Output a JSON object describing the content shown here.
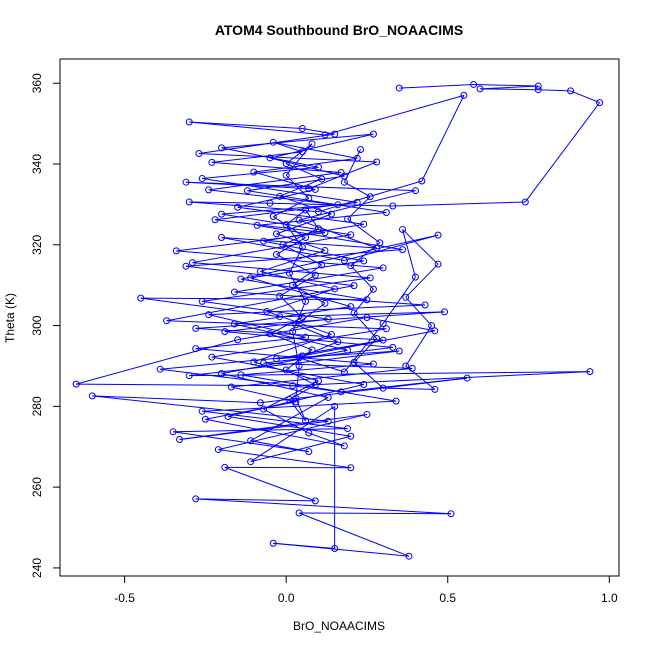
{
  "chart_data": {
    "type": "line",
    "marker": "open-circle",
    "title": "ATOM4 Southbound BrO_NOAACIMS",
    "xlabel": "BrO_NOAACIMS",
    "ylabel": "Theta (K)",
    "xlim": [
      -0.7,
      1.03
    ],
    "ylim": [
      238,
      366
    ],
    "x_ticks": [
      "-0.5",
      "0.0",
      "0.5",
      "1.0"
    ],
    "y_ticks": [
      "240",
      "260",
      "280",
      "300",
      "320",
      "340",
      "360"
    ],
    "grid": false,
    "legend": "none",
    "colors": {
      "series": "#0000ff",
      "frame": "#000000",
      "background": "#ffffff"
    },
    "series": [
      {
        "values": [
          {
            "x": 0.35,
            "y": 358.8
          },
          {
            "x": 0.58,
            "y": 359.7
          },
          {
            "x": 0.78,
            "y": 359.3
          },
          {
            "x": 0.6,
            "y": 358.6
          },
          {
            "x": 0.78,
            "y": 358.4
          },
          {
            "x": 0.88,
            "y": 358.1
          },
          {
            "x": 0.97,
            "y": 355.2
          },
          {
            "x": 0.74,
            "y": 330.6
          },
          {
            "x": 0.33,
            "y": 329.6
          },
          {
            "x": -0.05,
            "y": 330.3
          },
          {
            "x": -0.3,
            "y": 330.6
          },
          {
            "x": 0.1,
            "y": 328.2
          },
          {
            "x": 0.42,
            "y": 335.8
          },
          {
            "x": 0.55,
            "y": 357.0
          },
          {
            "x": 0.12,
            "y": 347.2
          },
          {
            "x": -0.3,
            "y": 350.4
          },
          {
            "x": 0.05,
            "y": 348.8
          },
          {
            "x": 0.15,
            "y": 347.4
          },
          {
            "x": -0.27,
            "y": 342.6
          },
          {
            "x": 0.28,
            "y": 340.5
          },
          {
            "x": 0.07,
            "y": 333.9
          },
          {
            "x": -0.31,
            "y": 335.5
          },
          {
            "x": 0.4,
            "y": 333.4
          },
          {
            "x": 0.04,
            "y": 326.1
          },
          {
            "x": 0.28,
            "y": 319.2
          },
          {
            "x": -0.2,
            "y": 321.8
          },
          {
            "x": 0.18,
            "y": 316.1
          },
          {
            "x": 0.47,
            "y": 322.4
          },
          {
            "x": -0.14,
            "y": 311.5
          },
          {
            "x": 0.25,
            "y": 306.4
          },
          {
            "x": -0.45,
            "y": 306.8
          },
          {
            "x": -0.02,
            "y": 302.2
          },
          {
            "x": 0.49,
            "y": 303.4
          },
          {
            "x": -0.28,
            "y": 299.3
          },
          {
            "x": 0.3,
            "y": 296.4
          },
          {
            "x": -0.03,
            "y": 291.8
          },
          {
            "x": 0.35,
            "y": 293.7
          },
          {
            "x": -0.3,
            "y": 287.6
          },
          {
            "x": 0.94,
            "y": 288.6
          },
          {
            "x": 0.02,
            "y": 285.1
          },
          {
            "x": -0.65,
            "y": 285.5
          },
          {
            "x": -0.15,
            "y": 296.5
          },
          {
            "x": 0.25,
            "y": 302.0
          },
          {
            "x": 0.46,
            "y": 298.7
          },
          {
            "x": 0.05,
            "y": 292.5
          },
          {
            "x": -0.39,
            "y": 289.2
          },
          {
            "x": 0.17,
            "y": 283.6
          },
          {
            "x": 0.56,
            "y": 287.0
          },
          {
            "x": -0.08,
            "y": 280.9
          },
          {
            "x": -0.6,
            "y": 282.6
          },
          {
            "x": 0.13,
            "y": 276.3
          },
          {
            "x": -0.33,
            "y": 271.8
          },
          {
            "x": 0.25,
            "y": 278.0
          },
          {
            "x": -0.21,
            "y": 269.3
          },
          {
            "x": 0.2,
            "y": 264.8
          },
          {
            "x": -0.19,
            "y": 264.9
          },
          {
            "x": 0.09,
            "y": 256.6
          },
          {
            "x": -0.28,
            "y": 257.1
          },
          {
            "x": 0.51,
            "y": 253.4
          },
          {
            "x": 0.04,
            "y": 253.6
          },
          {
            "x": 0.38,
            "y": 242.9
          },
          {
            "x": -0.04,
            "y": 246.1
          },
          {
            "x": 0.15,
            "y": 244.8
          },
          {
            "x": 0.15,
            "y": 280.0
          },
          {
            "x": -0.11,
            "y": 266.3
          },
          {
            "x": 0.2,
            "y": 272.6
          },
          {
            "x": -0.18,
            "y": 277.5
          },
          {
            "x": 0.24,
            "y": 285.4
          },
          {
            "x": -0.23,
            "y": 292.2
          },
          {
            "x": 0.31,
            "y": 299.2
          },
          {
            "x": -0.37,
            "y": 301.2
          },
          {
            "x": 0.21,
            "y": 309.9
          },
          {
            "x": -0.31,
            "y": 314.7
          },
          {
            "x": 0.36,
            "y": 318.8
          },
          {
            "x": -0.09,
            "y": 324.8
          },
          {
            "x": 0.31,
            "y": 328.0
          },
          {
            "x": -0.12,
            "y": 333.4
          },
          {
            "x": 0.18,
            "y": 337.0
          },
          {
            "x": -0.05,
            "y": 341.5
          },
          {
            "x": 0.27,
            "y": 347.4
          },
          {
            "x": -0.2,
            "y": 344.0
          },
          {
            "x": 0.1,
            "y": 339.2
          },
          {
            "x": -0.26,
            "y": 336.4
          },
          {
            "x": 0.22,
            "y": 330.5
          },
          {
            "x": -0.22,
            "y": 326.2
          },
          {
            "x": 0.12,
            "y": 323.0
          },
          {
            "x": -0.34,
            "y": 318.5
          },
          {
            "x": 0.3,
            "y": 314.3
          },
          {
            "x": -0.16,
            "y": 308.3
          },
          {
            "x": 0.43,
            "y": 305.1
          },
          {
            "x": -0.24,
            "y": 302.7
          },
          {
            "x": 0.06,
            "y": 297.1
          },
          {
            "x": -0.28,
            "y": 294.3
          },
          {
            "x": 0.27,
            "y": 290.5
          },
          {
            "x": -0.14,
            "y": 287.8
          },
          {
            "x": 0.34,
            "y": 281.3
          },
          {
            "x": -0.26,
            "y": 278.8
          },
          {
            "x": 0.19,
            "y": 274.5
          },
          {
            "x": -0.35,
            "y": 273.7
          },
          {
            "x": 0.07,
            "y": 268.8
          },
          {
            "x": -0.11,
            "y": 271.5
          },
          {
            "x": 0.13,
            "y": 282.2
          },
          {
            "x": -0.2,
            "y": 288.1
          },
          {
            "x": 0.19,
            "y": 293.9
          },
          {
            "x": -0.16,
            "y": 300.4
          },
          {
            "x": 0.2,
            "y": 304.7
          },
          {
            "x": -0.11,
            "y": 311.8
          },
          {
            "x": 0.24,
            "y": 316.0
          },
          {
            "x": -0.07,
            "y": 320.9
          },
          {
            "x": 0.24,
            "y": 325.1
          },
          {
            "x": -0.15,
            "y": 329.3
          },
          {
            "x": 0.09,
            "y": 333.7
          },
          {
            "x": -0.1,
            "y": 338.0
          },
          {
            "x": 0.22,
            "y": 341.4
          },
          {
            "x": -0.04,
            "y": 345.4
          },
          {
            "x": 0.05,
            "y": 343.0
          },
          {
            "x": -0.23,
            "y": 340.4
          },
          {
            "x": 0.17,
            "y": 337.9
          },
          {
            "x": -0.24,
            "y": 333.6
          },
          {
            "x": 0.16,
            "y": 329.9
          },
          {
            "x": -0.2,
            "y": 327.6
          },
          {
            "x": 0.2,
            "y": 322.5
          },
          {
            "x": -0.29,
            "y": 315.6
          },
          {
            "x": 0.26,
            "y": 311.8
          },
          {
            "x": -0.26,
            "y": 306.0
          },
          {
            "x": 0.13,
            "y": 301.6
          },
          {
            "x": -0.19,
            "y": 298.5
          },
          {
            "x": 0.33,
            "y": 294.6
          },
          {
            "x": -0.07,
            "y": 290.7
          },
          {
            "x": 0.39,
            "y": 289.4
          },
          {
            "x": -0.17,
            "y": 284.8
          },
          {
            "x": 0.03,
            "y": 281.1
          },
          {
            "x": -0.25,
            "y": 276.8
          },
          {
            "x": 0.18,
            "y": 270.2
          },
          {
            "x": 0.07,
            "y": 273.4
          },
          {
            "x": -0.07,
            "y": 279.3
          },
          {
            "x": 0.1,
            "y": 286.3
          },
          {
            "x": -0.1,
            "y": 291.0
          },
          {
            "x": 0.14,
            "y": 297.8
          },
          {
            "x": -0.06,
            "y": 303.5
          },
          {
            "x": 0.15,
            "y": 309.1
          },
          {
            "x": -0.08,
            "y": 313.4
          },
          {
            "x": 0.12,
            "y": 318.6
          },
          {
            "x": -0.03,
            "y": 322.7
          },
          {
            "x": 0.14,
            "y": 327.6
          },
          {
            "x": -0.02,
            "y": 332.0
          },
          {
            "x": 0.11,
            "y": 336.3
          },
          {
            "x": 0.0,
            "y": 340.1
          },
          {
            "x": 0.08,
            "y": 345.0
          },
          {
            "x": 0.0,
            "y": 337.2
          },
          {
            "x": 0.07,
            "y": 331.5
          },
          {
            "x": -0.04,
            "y": 327.0
          },
          {
            "x": 0.06,
            "y": 321.8
          },
          {
            "x": -0.03,
            "y": 317.6
          },
          {
            "x": 0.09,
            "y": 312.5
          },
          {
            "x": -0.02,
            "y": 307.3
          },
          {
            "x": 0.05,
            "y": 302.0
          },
          {
            "x": -0.05,
            "y": 298.0
          },
          {
            "x": 0.08,
            "y": 294.0
          },
          {
            "x": 0.0,
            "y": 289.0
          },
          {
            "x": 0.09,
            "y": 285.3
          },
          {
            "x": 0.01,
            "y": 281.7
          },
          {
            "x": 0.06,
            "y": 276.4
          },
          {
            "x": 0.03,
            "y": 282.0
          },
          {
            "x": 0.04,
            "y": 290.0
          },
          {
            "x": 0.02,
            "y": 298.5
          },
          {
            "x": 0.06,
            "y": 306.0
          },
          {
            "x": 0.01,
            "y": 313.0
          },
          {
            "x": 0.05,
            "y": 319.4
          },
          {
            "x": 0.0,
            "y": 325.0
          },
          {
            "x": 0.06,
            "y": 328.6
          },
          {
            "x": 0.1,
            "y": 324.0
          },
          {
            "x": -0.01,
            "y": 320.0
          },
          {
            "x": 0.11,
            "y": 315.0
          },
          {
            "x": 0.02,
            "y": 310.0
          },
          {
            "x": 0.12,
            "y": 305.5
          },
          {
            "x": 0.03,
            "y": 300.2
          },
          {
            "x": 0.16,
            "y": 296.0
          },
          {
            "x": 0.04,
            "y": 292.0
          },
          {
            "x": 0.18,
            "y": 288.5
          },
          {
            "x": 0.3,
            "y": 300.5
          },
          {
            "x": 0.4,
            "y": 312.0
          },
          {
            "x": 0.36,
            "y": 323.8
          },
          {
            "x": 0.47,
            "y": 315.2
          },
          {
            "x": 0.37,
            "y": 307.0
          },
          {
            "x": 0.45,
            "y": 300.0
          },
          {
            "x": 0.37,
            "y": 290.0
          },
          {
            "x": 0.46,
            "y": 284.2
          },
          {
            "x": 0.3,
            "y": 284.5
          },
          {
            "x": 0.21,
            "y": 290.9
          },
          {
            "x": 0.28,
            "y": 296.8
          },
          {
            "x": 0.21,
            "y": 303.1
          },
          {
            "x": 0.27,
            "y": 309.0
          },
          {
            "x": 0.2,
            "y": 314.8
          },
          {
            "x": 0.29,
            "y": 320.5
          },
          {
            "x": 0.19,
            "y": 326.4
          },
          {
            "x": 0.26,
            "y": 331.9
          },
          {
            "x": 0.18,
            "y": 335.5
          },
          {
            "x": 0.23,
            "y": 343.6
          }
        ]
      }
    ]
  }
}
